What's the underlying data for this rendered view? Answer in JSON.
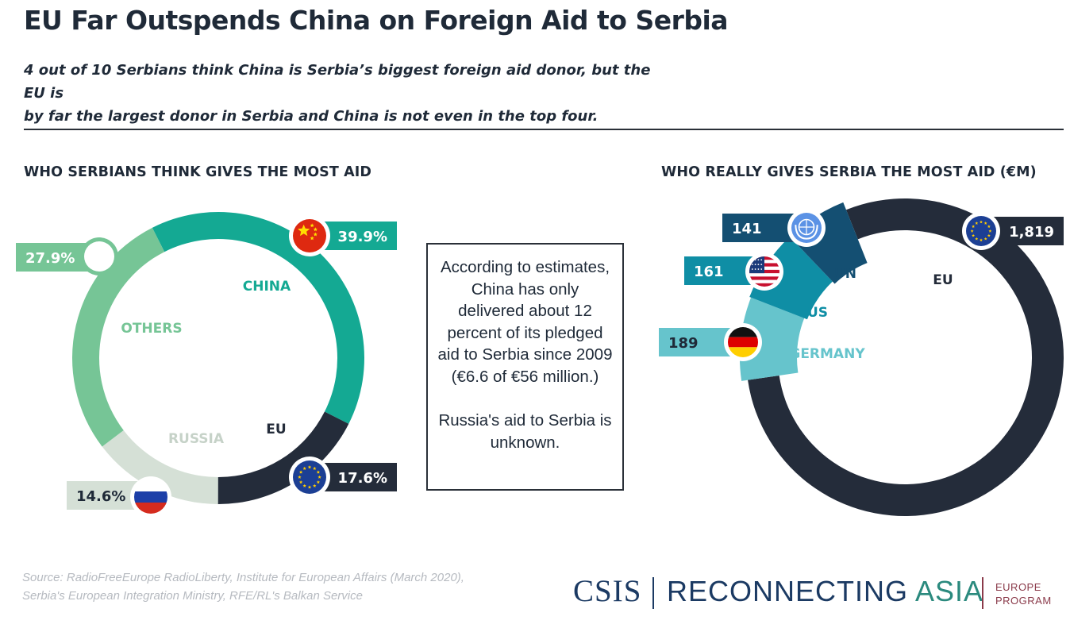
{
  "header": {
    "title": "EU Far Outspends China on Foreign Aid to Serbia",
    "subtitle_line1": "4 out of 10 Serbians think China is Serbia’s biggest foreign aid donor, but the EU is",
    "subtitle_line2": "by far the largest donor in Serbia and China is not even in the top four."
  },
  "chart_data": [
    {
      "type": "pie",
      "variant": "donut",
      "title": "WHO SERBIANS THINK GIVES THE MOST AID",
      "categories": [
        "CHINA",
        "EU",
        "RUSSIA",
        "OTHERS"
      ],
      "values": [
        39.9,
        17.6,
        14.6,
        27.9
      ],
      "value_labels": [
        "39.9%",
        "17.6%",
        "14.6%",
        "27.9%"
      ],
      "colors": [
        "#14a993",
        "#242c3a",
        "#d5e0d6",
        "#76c596"
      ],
      "label_colors": [
        "#14a993",
        "#242c3a",
        "#c6d2c8",
        "#76c596"
      ],
      "flags": [
        "china-flag-icon",
        "eu-flag-icon",
        "russia-flag-icon",
        "blank-icon"
      ]
    },
    {
      "type": "pie",
      "variant": "donut",
      "title": "WHO REALLY GIVES SERBIA THE MOST AID (€M)",
      "categories": [
        "EU",
        "GERMANY",
        "US",
        "UN"
      ],
      "values": [
        1819,
        189,
        161,
        141
      ],
      "value_labels": [
        "1,819",
        "189",
        "161",
        "141"
      ],
      "colors": [
        "#242c3a",
        "#66c4cc",
        "#0f8ea5",
        "#144f72"
      ],
      "label_colors": [
        "#242c3a",
        "#66c4cc",
        "#0f8ea5",
        "#144f72"
      ],
      "flags": [
        "eu-flag-icon",
        "germany-flag-icon",
        "us-flag-icon",
        "un-flag-icon"
      ]
    }
  ],
  "note": {
    "paragraph1": "According to estimates, China has only delivered about 12 percent of its pledged aid to Serbia since 2009 (€6.6 of €56 million.)",
    "paragraph2": "Russia's aid to Serbia is unknown."
  },
  "footer": {
    "source_line1": "Source: RadioFreeEurope RadioLiberty, Institute for European Affairs (March 2020),",
    "source_line2": "Serbia's European Integration Ministry, RFE/RL's Balkan Service",
    "logo_csis": "CSIS",
    "logo_reconnecting": "RECONNECTING",
    "logo_asia": "ASIA",
    "logo_europe_line1": "EUROPE",
    "logo_europe_line2": "PROGRAM"
  }
}
